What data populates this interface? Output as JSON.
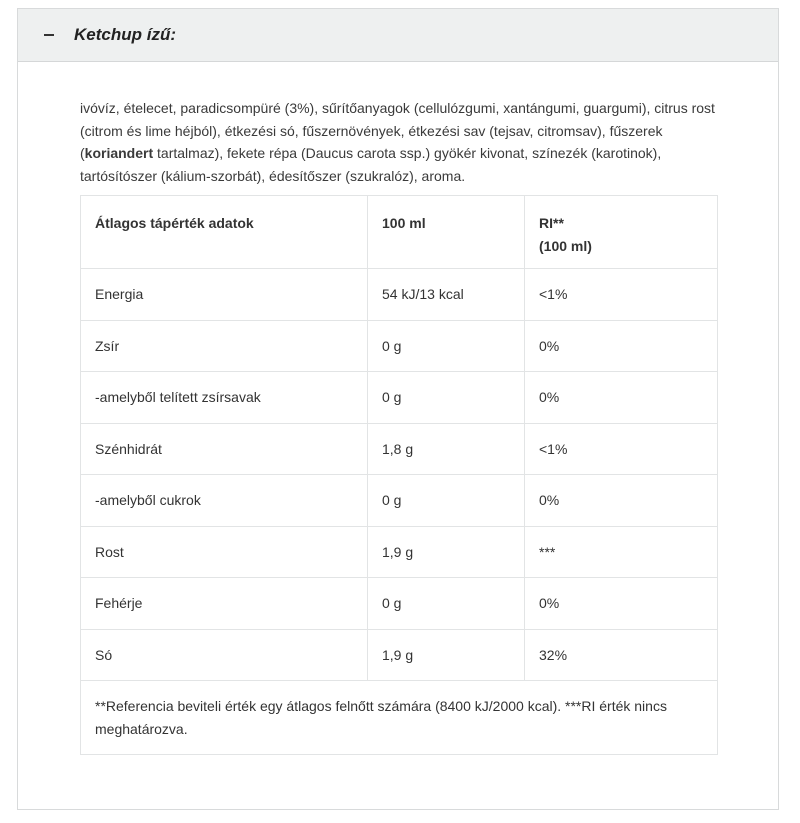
{
  "section": {
    "title": "Ketchup ízű:",
    "toggle_icon": "minus-icon"
  },
  "ingredients": {
    "before": "ivóvíz, ételecet, paradicsompüré (3%), sűrítőanyagok (cellulózgumi, xantángumi, guargumi), citrus rost (citrom és lime héjból), étkezési só, fűszernövények, étkezési sav (tejsav, citromsav), fűszerek (",
    "bold": "koriandert",
    "after": " tartalmaz), fekete répa (Daucus carota ssp.) gyökér kivonat, színezék (karotinok), tartósítószer (kálium-szorbát), édesítőszer (szukralóz), aroma."
  },
  "table": {
    "headers": [
      "Átlagos tápérték adatok",
      "100 ml",
      "RI**",
      "(100 ml)"
    ],
    "rows": [
      [
        "Energia",
        "54 kJ/13 kcal",
        "<1%"
      ],
      [
        "Zsír",
        "0 g",
        "0%"
      ],
      [
        "-amelyből telített zsírsavak",
        "0 g",
        "0%"
      ],
      [
        "Szénhidrát",
        "1,8 g",
        "<1%"
      ],
      [
        "-amelyből cukrok",
        "0 g",
        "0%"
      ],
      [
        "Rost",
        "1,9 g",
        "***"
      ],
      [
        "Fehérje",
        "0 g",
        "0%"
      ],
      [
        "Só",
        "1,9 g",
        "32%"
      ]
    ],
    "footnote": "**Referencia beviteli érték egy átlagos felnőtt számára (8400 kJ/2000 kcal). ***RI érték nincs meghatározva."
  }
}
